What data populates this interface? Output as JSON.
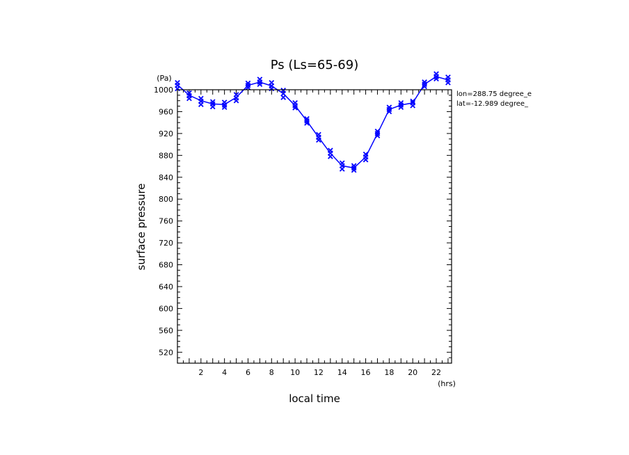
{
  "chart_data": {
    "type": "line",
    "title": "Ps (Ls=65-69)",
    "xlabel": "local time",
    "ylabel": "surface pressure",
    "x_unit": "(hrs)",
    "y_unit": "(Pa)",
    "xlim": [
      0,
      23.3
    ],
    "ylim": [
      500,
      1000
    ],
    "xticks": [
      2,
      4,
      6,
      8,
      10,
      12,
      14,
      16,
      18,
      20,
      22
    ],
    "yticks": [
      520,
      560,
      600,
      640,
      680,
      720,
      760,
      800,
      840,
      880,
      920,
      960,
      1000
    ],
    "annotations": [
      "lon=288.75 degree_e",
      "lat=-12.989 degree_"
    ],
    "series": [
      {
        "color": "#0000ff",
        "x": [
          0,
          1,
          2,
          3,
          4,
          5,
          6,
          7,
          8,
          9,
          10,
          11,
          12,
          13,
          14,
          15,
          16,
          17,
          18,
          19,
          20,
          21,
          22,
          23
        ],
        "y": [
          1009,
          990,
          980,
          974,
          973,
          986,
          1008,
          1014,
          1007,
          993,
          971,
          943,
          913,
          884,
          861,
          857,
          877,
          920,
          964,
          972,
          976,
          1010,
          1024,
          1018
        ],
        "scatter": [
          [
            1013,
            1008,
            1002
          ],
          [
            994,
            989,
            984
          ],
          [
            984,
            979,
            973
          ],
          [
            978,
            974,
            969
          ],
          [
            977,
            972,
            968
          ],
          [
            991,
            985,
            980
          ],
          [
            1012,
            1008,
            1004
          ],
          [
            1019,
            1014,
            1010
          ],
          [
            1013,
            1007,
            1002
          ],
          [
            999,
            993,
            986
          ],
          [
            976,
            971,
            967
          ],
          [
            947,
            943,
            939
          ],
          [
            918,
            913,
            908
          ],
          [
            889,
            884,
            878
          ],
          [
            866,
            861,
            855
          ],
          [
            861,
            857,
            853
          ],
          [
            882,
            877,
            872
          ],
          [
            924,
            920,
            916
          ],
          [
            968,
            964,
            960
          ],
          [
            976,
            972,
            968
          ],
          [
            979,
            976,
            971
          ],
          [
            1014,
            1010,
            1006
          ],
          [
            1029,
            1024,
            1020
          ],
          [
            1023,
            1018,
            1013
          ]
        ]
      }
    ]
  }
}
